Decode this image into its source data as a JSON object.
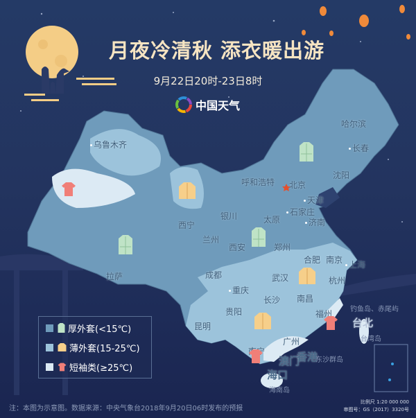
{
  "header": {
    "title": "月夜冷清秋 添衣暖出游",
    "subtitle": "9月22日20时-23日8时",
    "brand": "中国天气",
    "brand_icon": "china-weather-logo"
  },
  "colors": {
    "cold": "#6f9bbb",
    "mild": "#9cc3db",
    "warm": "#dceaf4",
    "coat": "#bfe3c6",
    "jacket": "#f6cf8a",
    "tshirt": "#f07f78",
    "title": "#f6e4c2"
  },
  "cities": [
    {
      "name": "乌鲁木齐"
    },
    {
      "name": "哈尔滨"
    },
    {
      "name": "长春"
    },
    {
      "name": "沈阳"
    },
    {
      "name": "呼和浩特"
    },
    {
      "name": "北京"
    },
    {
      "name": "天津"
    },
    {
      "name": "石家庄"
    },
    {
      "name": "济南"
    },
    {
      "name": "银川"
    },
    {
      "name": "太原"
    },
    {
      "name": "西宁"
    },
    {
      "name": "兰州"
    },
    {
      "name": "西安"
    },
    {
      "name": "郑州"
    },
    {
      "name": "合肥"
    },
    {
      "name": "南京"
    },
    {
      "name": "上海"
    },
    {
      "name": "成都"
    },
    {
      "name": "武汉"
    },
    {
      "name": "杭州"
    },
    {
      "name": "重庆"
    },
    {
      "name": "长沙"
    },
    {
      "name": "南昌"
    },
    {
      "name": "拉萨"
    },
    {
      "name": "贵阳"
    },
    {
      "name": "昆明"
    },
    {
      "name": "福州"
    },
    {
      "name": "台北"
    },
    {
      "name": "台湾岛"
    },
    {
      "name": "钓鱼岛、赤尾屿"
    },
    {
      "name": "南宁"
    },
    {
      "name": "广州"
    },
    {
      "name": "澳门"
    },
    {
      "name": "香港"
    },
    {
      "name": "东沙群岛"
    },
    {
      "name": "海口"
    },
    {
      "name": "海南岛"
    }
  ],
  "legend": [
    {
      "label": "厚外套(<15℃)",
      "icon": "coat-icon",
      "color": "#6f9bbb"
    },
    {
      "label": "薄外套(15-25℃)",
      "icon": "jacket-icon",
      "color": "#9cc3db"
    },
    {
      "label": "短袖类(≥25℃)",
      "icon": "tshirt-icon",
      "color": "#dceaf4"
    }
  ],
  "footer": {
    "note": "注：本图为示意图。数据来源：中央气象台2018年9月20日06时发布的预报",
    "scale": "比例尺 1:20 000 000",
    "approval": "审图号：GS（2017）3320号"
  }
}
